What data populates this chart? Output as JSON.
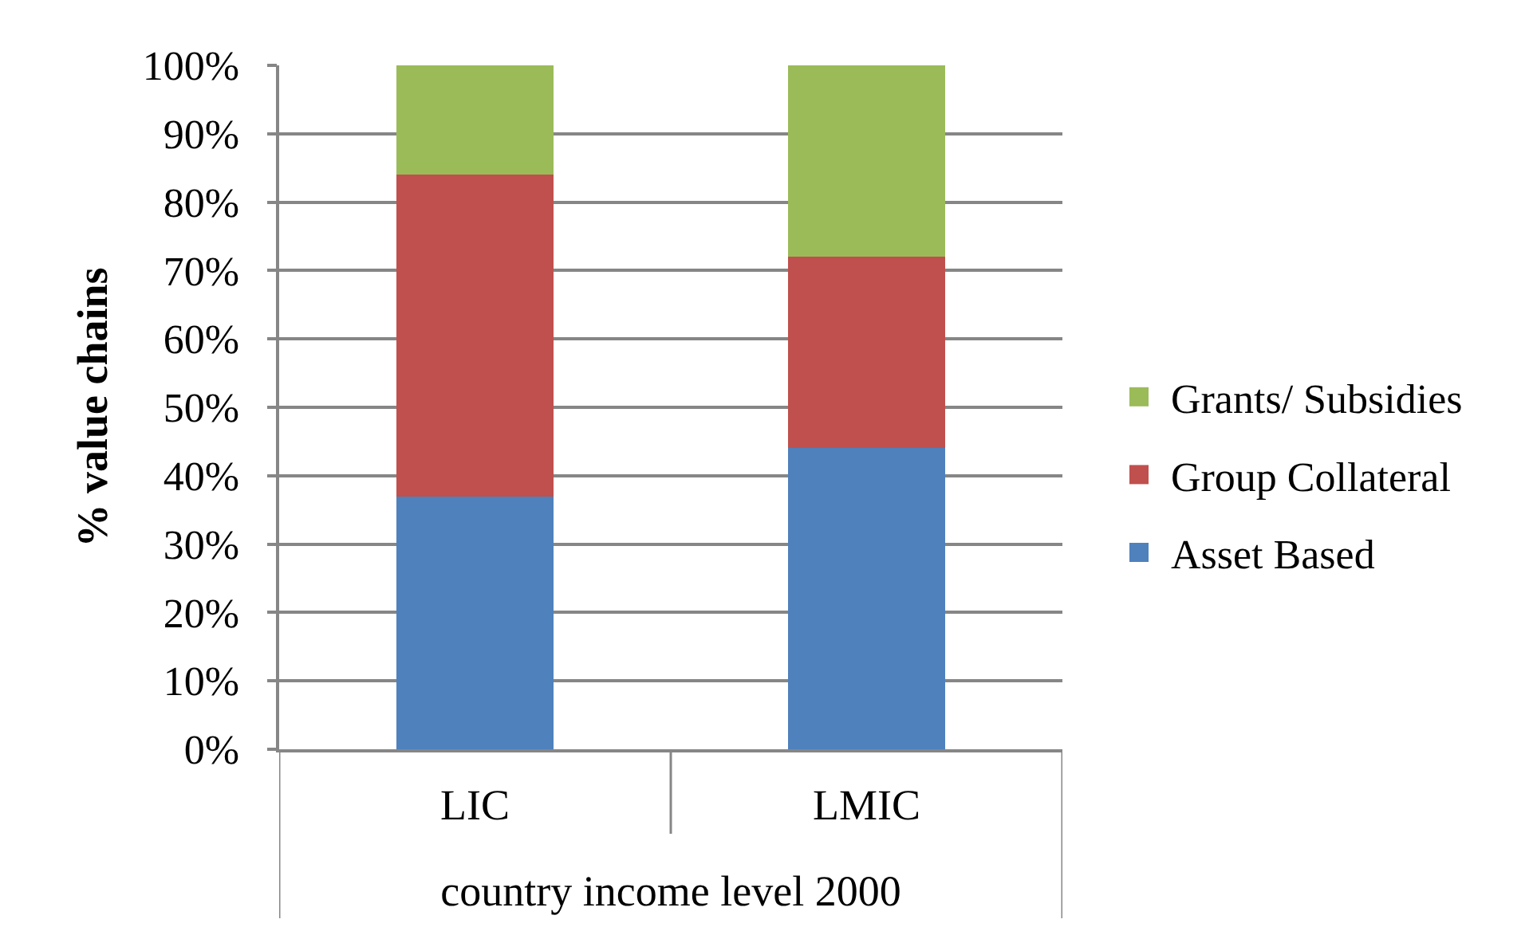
{
  "chart_data": {
    "type": "bar",
    "stacked": true,
    "categories": [
      "LIC",
      "LMIC"
    ],
    "xlabel": "country income level 2000",
    "ylabel": "% value chains",
    "series": [
      {
        "name": "Asset Based",
        "color": "#4f81bd",
        "values": [
          37,
          44
        ]
      },
      {
        "name": "Group Collateral",
        "color": "#c0504d",
        "values": [
          47,
          28
        ]
      },
      {
        "name": "Grants/ Subsidies",
        "color": "#9bbb59",
        "values": [
          16,
          28
        ]
      }
    ],
    "ylim": [
      0,
      100
    ],
    "yticks": [
      {
        "value": 0,
        "label": "0%"
      },
      {
        "value": 10,
        "label": "10%"
      },
      {
        "value": 20,
        "label": "20%"
      },
      {
        "value": 30,
        "label": "30%"
      },
      {
        "value": 40,
        "label": "40%"
      },
      {
        "value": 50,
        "label": "50%"
      },
      {
        "value": 60,
        "label": "60%"
      },
      {
        "value": 70,
        "label": "70%"
      },
      {
        "value": 80,
        "label": "80%"
      },
      {
        "value": 90,
        "label": "90%"
      },
      {
        "value": 100,
        "label": "100%"
      }
    ],
    "grid": "y",
    "legend": "right"
  }
}
